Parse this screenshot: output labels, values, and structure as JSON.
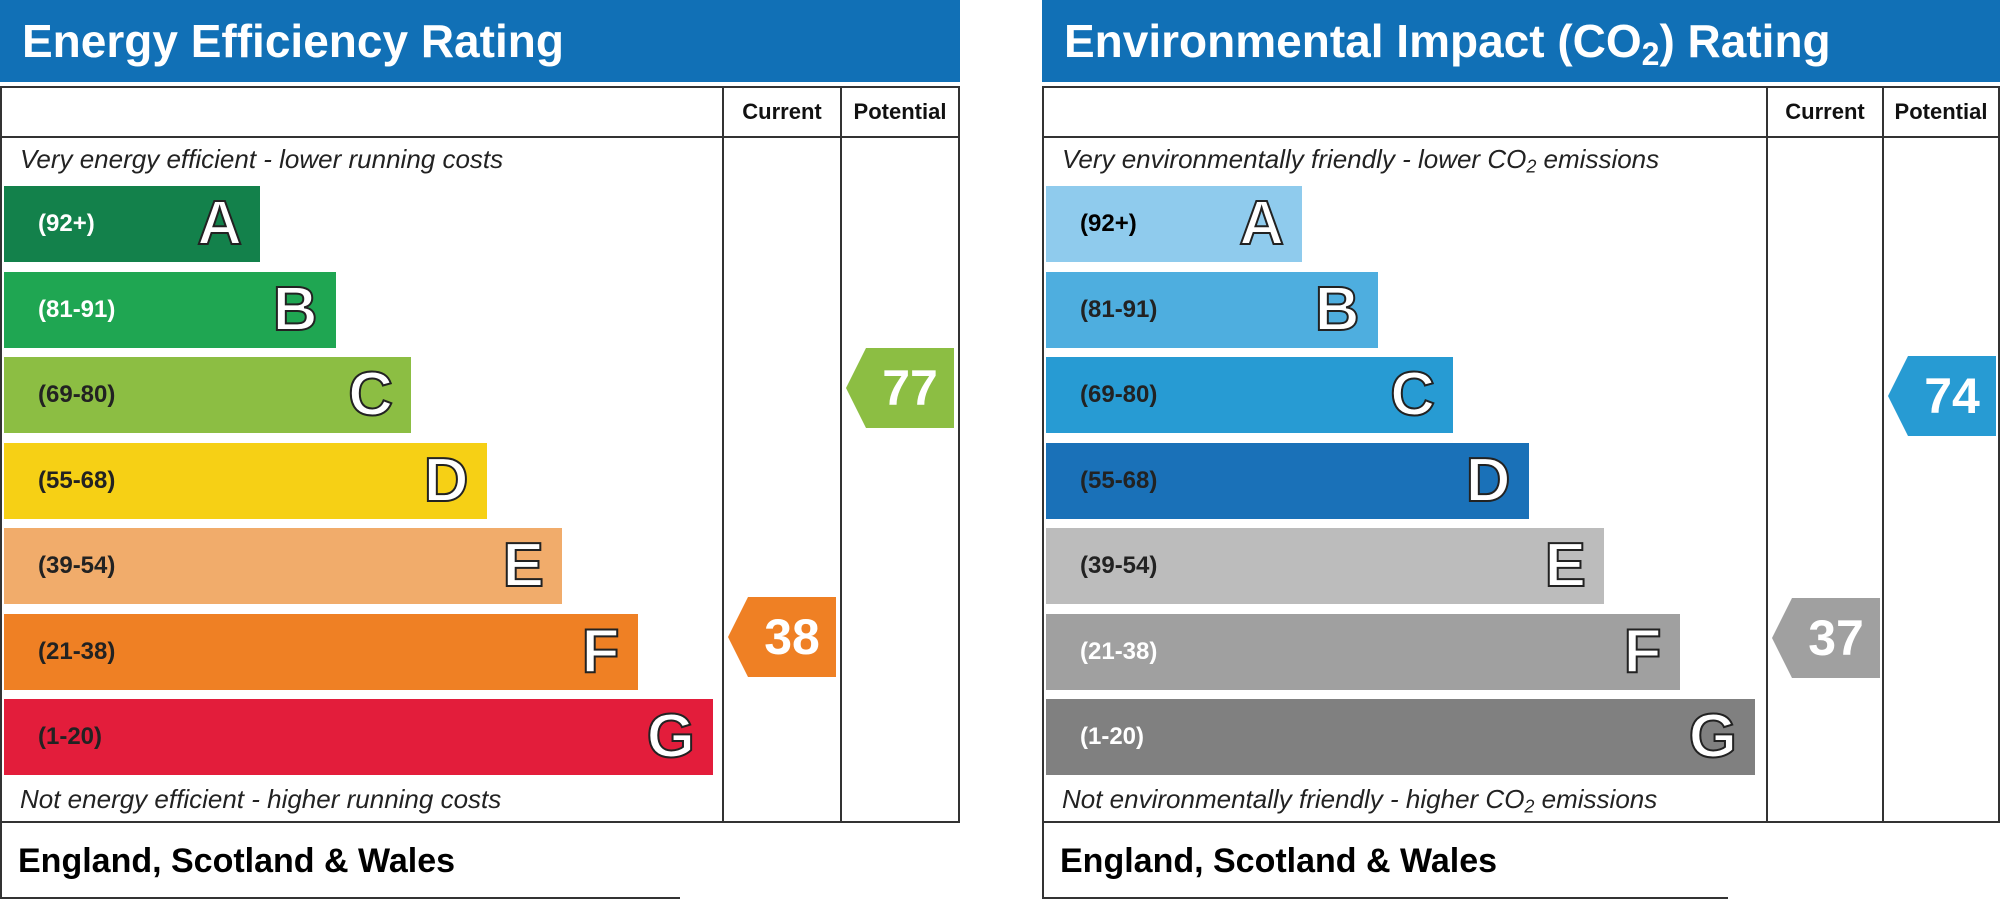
{
  "chart_data": [
    {
      "type": "bar",
      "title": "Energy Efficiency Rating",
      "columns": [
        "Current",
        "Potential"
      ],
      "top_caption": "Very energy efficient - lower running costs",
      "bottom_caption": "Not energy efficient - higher running costs",
      "footer": "England, Scotland & Wales",
      "bands": [
        {
          "letter": "A",
          "range": "(92+)",
          "color": "#13814b",
          "text_color": "#ffffff"
        },
        {
          "letter": "B",
          "range": "(81-91)",
          "color": "#1fa652",
          "text_color": "#ffffff"
        },
        {
          "letter": "C",
          "range": "(69-80)",
          "color": "#8cbe43",
          "text_color": "#222222"
        },
        {
          "letter": "D",
          "range": "(55-68)",
          "color": "#f6d015",
          "text_color": "#222222"
        },
        {
          "letter": "E",
          "range": "(39-54)",
          "color": "#f1ac6b",
          "text_color": "#222222"
        },
        {
          "letter": "F",
          "range": "(21-38)",
          "color": "#ef8024",
          "text_color": "#222222"
        },
        {
          "letter": "G",
          "range": "(1-20)",
          "color": "#e31d3b",
          "text_color": "#222222"
        }
      ],
      "current": {
        "value": 38,
        "band": "F",
        "color": "#ef8024"
      },
      "potential": {
        "value": 77,
        "band": "C",
        "color": "#8cbe43"
      }
    },
    {
      "type": "bar",
      "title": "Environmental Impact (CO2) Rating",
      "columns": [
        "Current",
        "Potential"
      ],
      "top_caption": "Very environmentally friendly - lower CO2 emissions",
      "bottom_caption": "Not environmentally friendly - higher CO2 emissions",
      "footer": "England, Scotland & Wales",
      "bands": [
        {
          "letter": "A",
          "range": "(92+)",
          "color": "#8fcbed",
          "text_color": "#000000"
        },
        {
          "letter": "B",
          "range": "(81-91)",
          "color": "#4eaedf",
          "text_color": "#222222"
        },
        {
          "letter": "C",
          "range": "(69-80)",
          "color": "#279bd3",
          "text_color": "#222222"
        },
        {
          "letter": "D",
          "range": "(55-68)",
          "color": "#1a71b8",
          "text_color": "#222222"
        },
        {
          "letter": "E",
          "range": "(39-54)",
          "color": "#bcbcbc",
          "text_color": "#222222"
        },
        {
          "letter": "F",
          "range": "(21-38)",
          "color": "#a0a0a0",
          "text_color": "#ffffff"
        },
        {
          "letter": "G",
          "range": "(1-20)",
          "color": "#808080",
          "text_color": "#ffffff"
        }
      ],
      "current": {
        "value": 37,
        "band": "F",
        "color": "#a0a0a0"
      },
      "potential": {
        "value": 74,
        "band": "C",
        "color": "#279bd3"
      }
    }
  ]
}
